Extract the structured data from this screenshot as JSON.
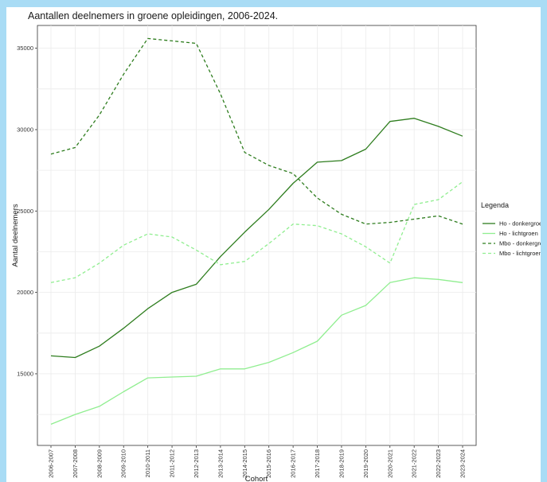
{
  "chart_data": {
    "type": "line",
    "title": "Aantallen deelnemers in groene opleidingen, 2006-2024.",
    "xlabel": "Cohort",
    "ylabel": "Aantal deelnemers",
    "ylim": [
      10600,
      36400
    ],
    "yticks": [
      15000,
      20000,
      25000,
      30000,
      35000
    ],
    "grid": true,
    "legend_title": "Legenda",
    "legend_position": "right",
    "categories": [
      "2006-2007",
      "2007-2008",
      "2008-2009",
      "2009-2010",
      "2010-2011",
      "2011-2012",
      "2012-2013",
      "2013-2014",
      "2014-2015",
      "2015-2016",
      "2016-2017",
      "2017-2018",
      "2018-2019",
      "2019-2020",
      "2020-2021",
      "2021-2022",
      "2022-2023",
      "2023-2024"
    ],
    "series": [
      {
        "name": "Ho - donkergroen",
        "color": "#2e7d1e",
        "dash": "solid",
        "values": [
          16100,
          16000,
          16700,
          17800,
          19000,
          20000,
          20500,
          22200,
          23700,
          25100,
          26700,
          28000,
          28100,
          28800,
          30500,
          30700,
          30200,
          29600
        ]
      },
      {
        "name": "Ho - lichtgroen",
        "color": "#90ee90",
        "dash": "solid",
        "values": [
          11900,
          12500,
          13000,
          13900,
          14750,
          14800,
          14850,
          15300,
          15300,
          15700,
          16300,
          17000,
          18600,
          19200,
          20600,
          20900,
          20800,
          20600
        ]
      },
      {
        "name": "Mbo - donkergroen",
        "color": "#2e7d1e",
        "dash": "dashed",
        "values": [
          28500,
          28900,
          30900,
          33400,
          35600,
          35450,
          35300,
          32200,
          28600,
          27800,
          27300,
          25800,
          24800,
          24200,
          24300,
          24500,
          24700,
          24200
        ]
      },
      {
        "name": "Mbo - lichtgroen",
        "color": "#90ee90",
        "dash": "dashed",
        "values": [
          20600,
          20900,
          21800,
          22900,
          23600,
          23400,
          22600,
          21700,
          21900,
          23000,
          24200,
          24100,
          23600,
          22800,
          21800,
          25400,
          25700,
          26800
        ]
      }
    ]
  }
}
